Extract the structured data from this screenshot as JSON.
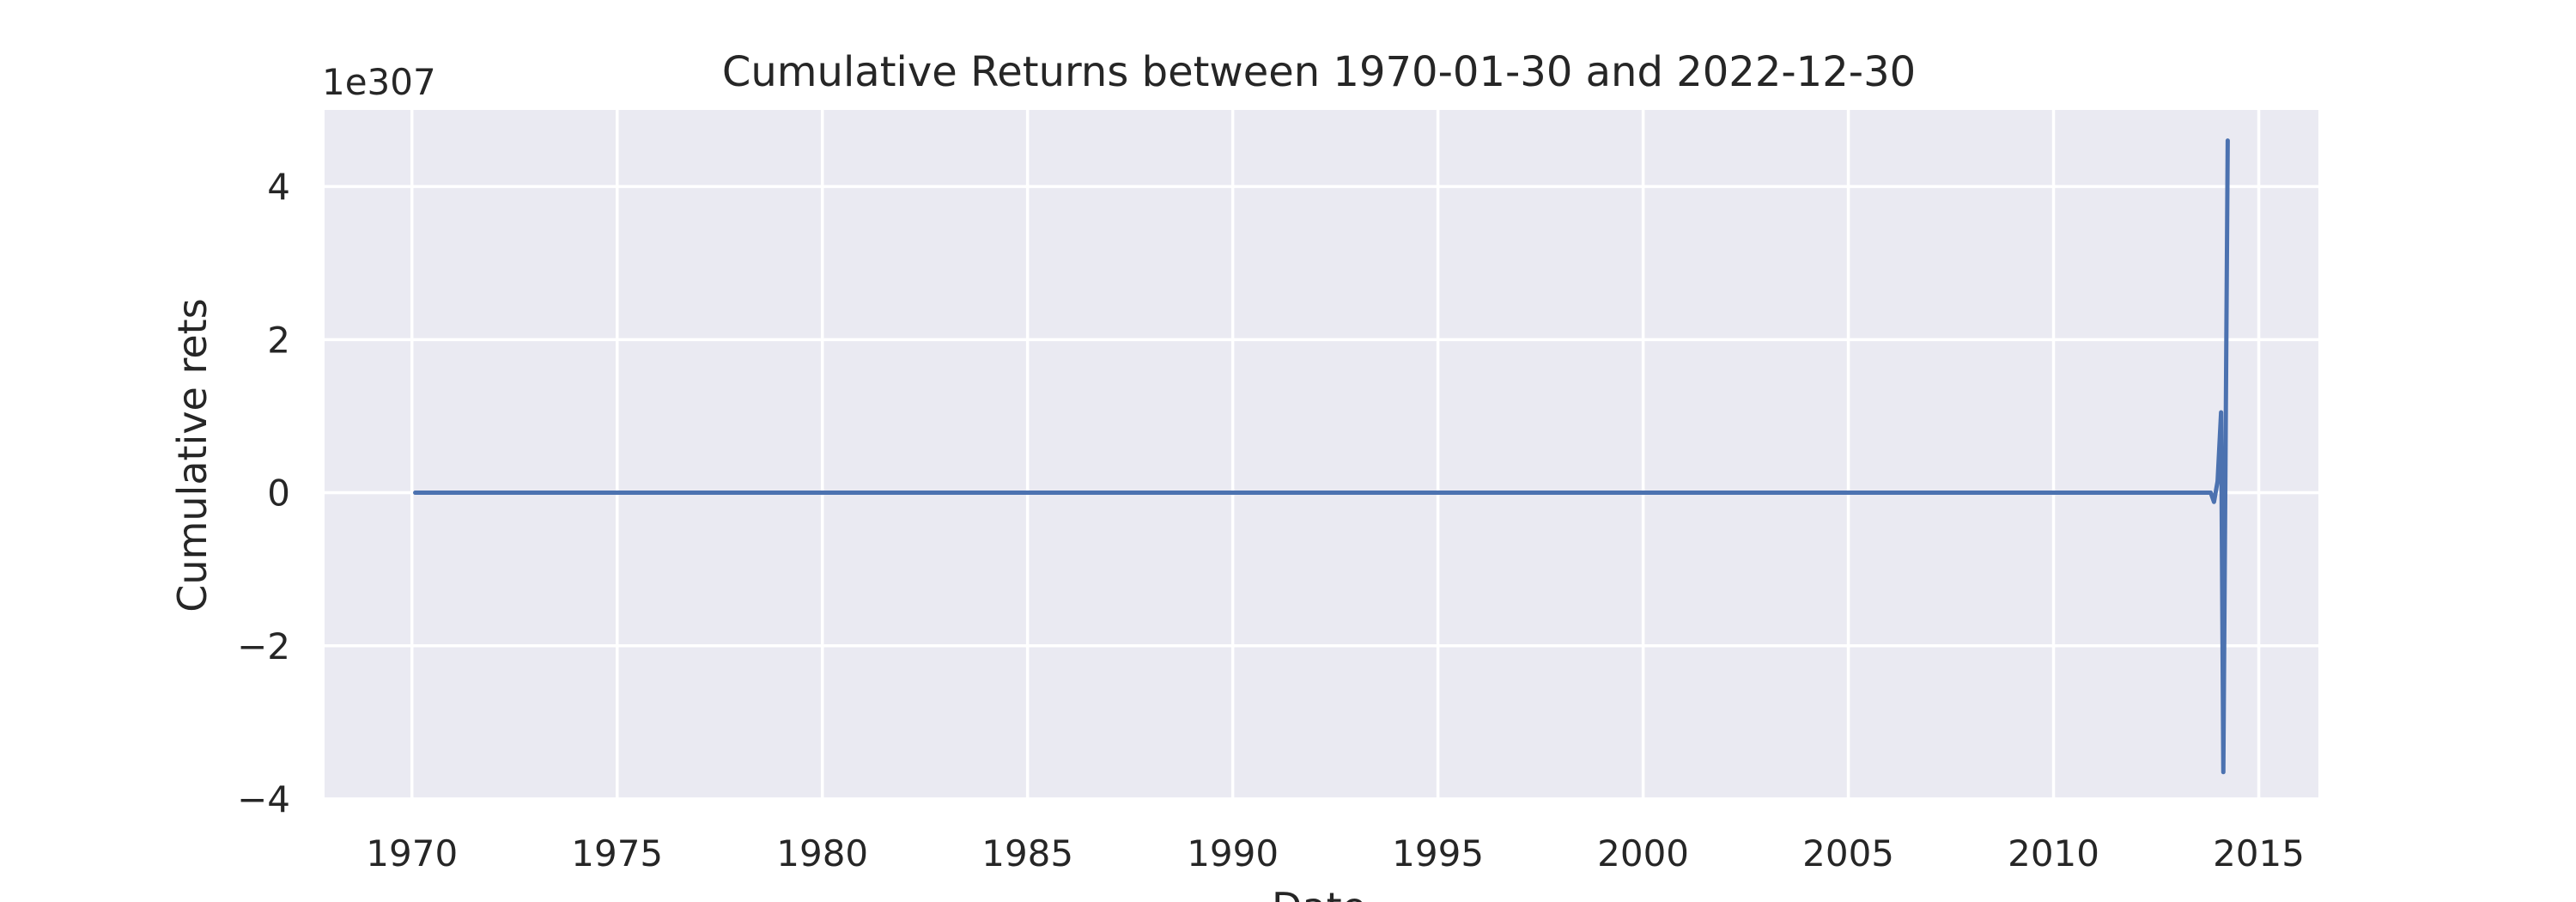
{
  "chart_data": {
    "type": "line",
    "title": "Cumulative Returns between 1970-01-30 and 2022-12-30",
    "xlabel": "Date",
    "ylabel": "Cumulative rets",
    "y_offset_label": "1e307",
    "y_scale_exponent": 307,
    "xlim": [
      "1967-11-15",
      "2016-06-15"
    ],
    "ylim": [
      -4.0,
      5.0
    ],
    "x_ticks": [
      {
        "value": "1970-01-01",
        "label": "1970"
      },
      {
        "value": "1975-01-01",
        "label": "1975"
      },
      {
        "value": "1980-01-01",
        "label": "1980"
      },
      {
        "value": "1985-01-01",
        "label": "1985"
      },
      {
        "value": "1990-01-01",
        "label": "1990"
      },
      {
        "value": "1995-01-01",
        "label": "1995"
      },
      {
        "value": "2000-01-01",
        "label": "2000"
      },
      {
        "value": "2005-01-01",
        "label": "2005"
      },
      {
        "value": "2010-01-01",
        "label": "2010"
      },
      {
        "value": "2015-01-01",
        "label": "2015"
      }
    ],
    "y_ticks": [
      {
        "value": -4,
        "label": "−4"
      },
      {
        "value": -2,
        "label": "−2"
      },
      {
        "value": 0,
        "label": "0"
      },
      {
        "value": 2,
        "label": "2"
      },
      {
        "value": 4,
        "label": "4"
      }
    ],
    "grid": true,
    "series": [
      {
        "color": "#4c72b0",
        "points": [
          {
            "x": "1970-01-30",
            "y": 0.0
          },
          {
            "x": "1980-01-31",
            "y": 0.0
          },
          {
            "x": "1990-01-31",
            "y": 0.0
          },
          {
            "x": "2000-01-31",
            "y": 0.0
          },
          {
            "x": "2010-01-29",
            "y": 0.0
          },
          {
            "x": "2013-10-31",
            "y": 0.0
          },
          {
            "x": "2013-11-29",
            "y": -0.12
          },
          {
            "x": "2013-12-31",
            "y": 0.15
          },
          {
            "x": "2014-01-31",
            "y": 1.05
          },
          {
            "x": "2014-02-20",
            "y": -3.65
          },
          {
            "x": "2014-03-31",
            "y": 4.6
          }
        ]
      }
    ]
  }
}
